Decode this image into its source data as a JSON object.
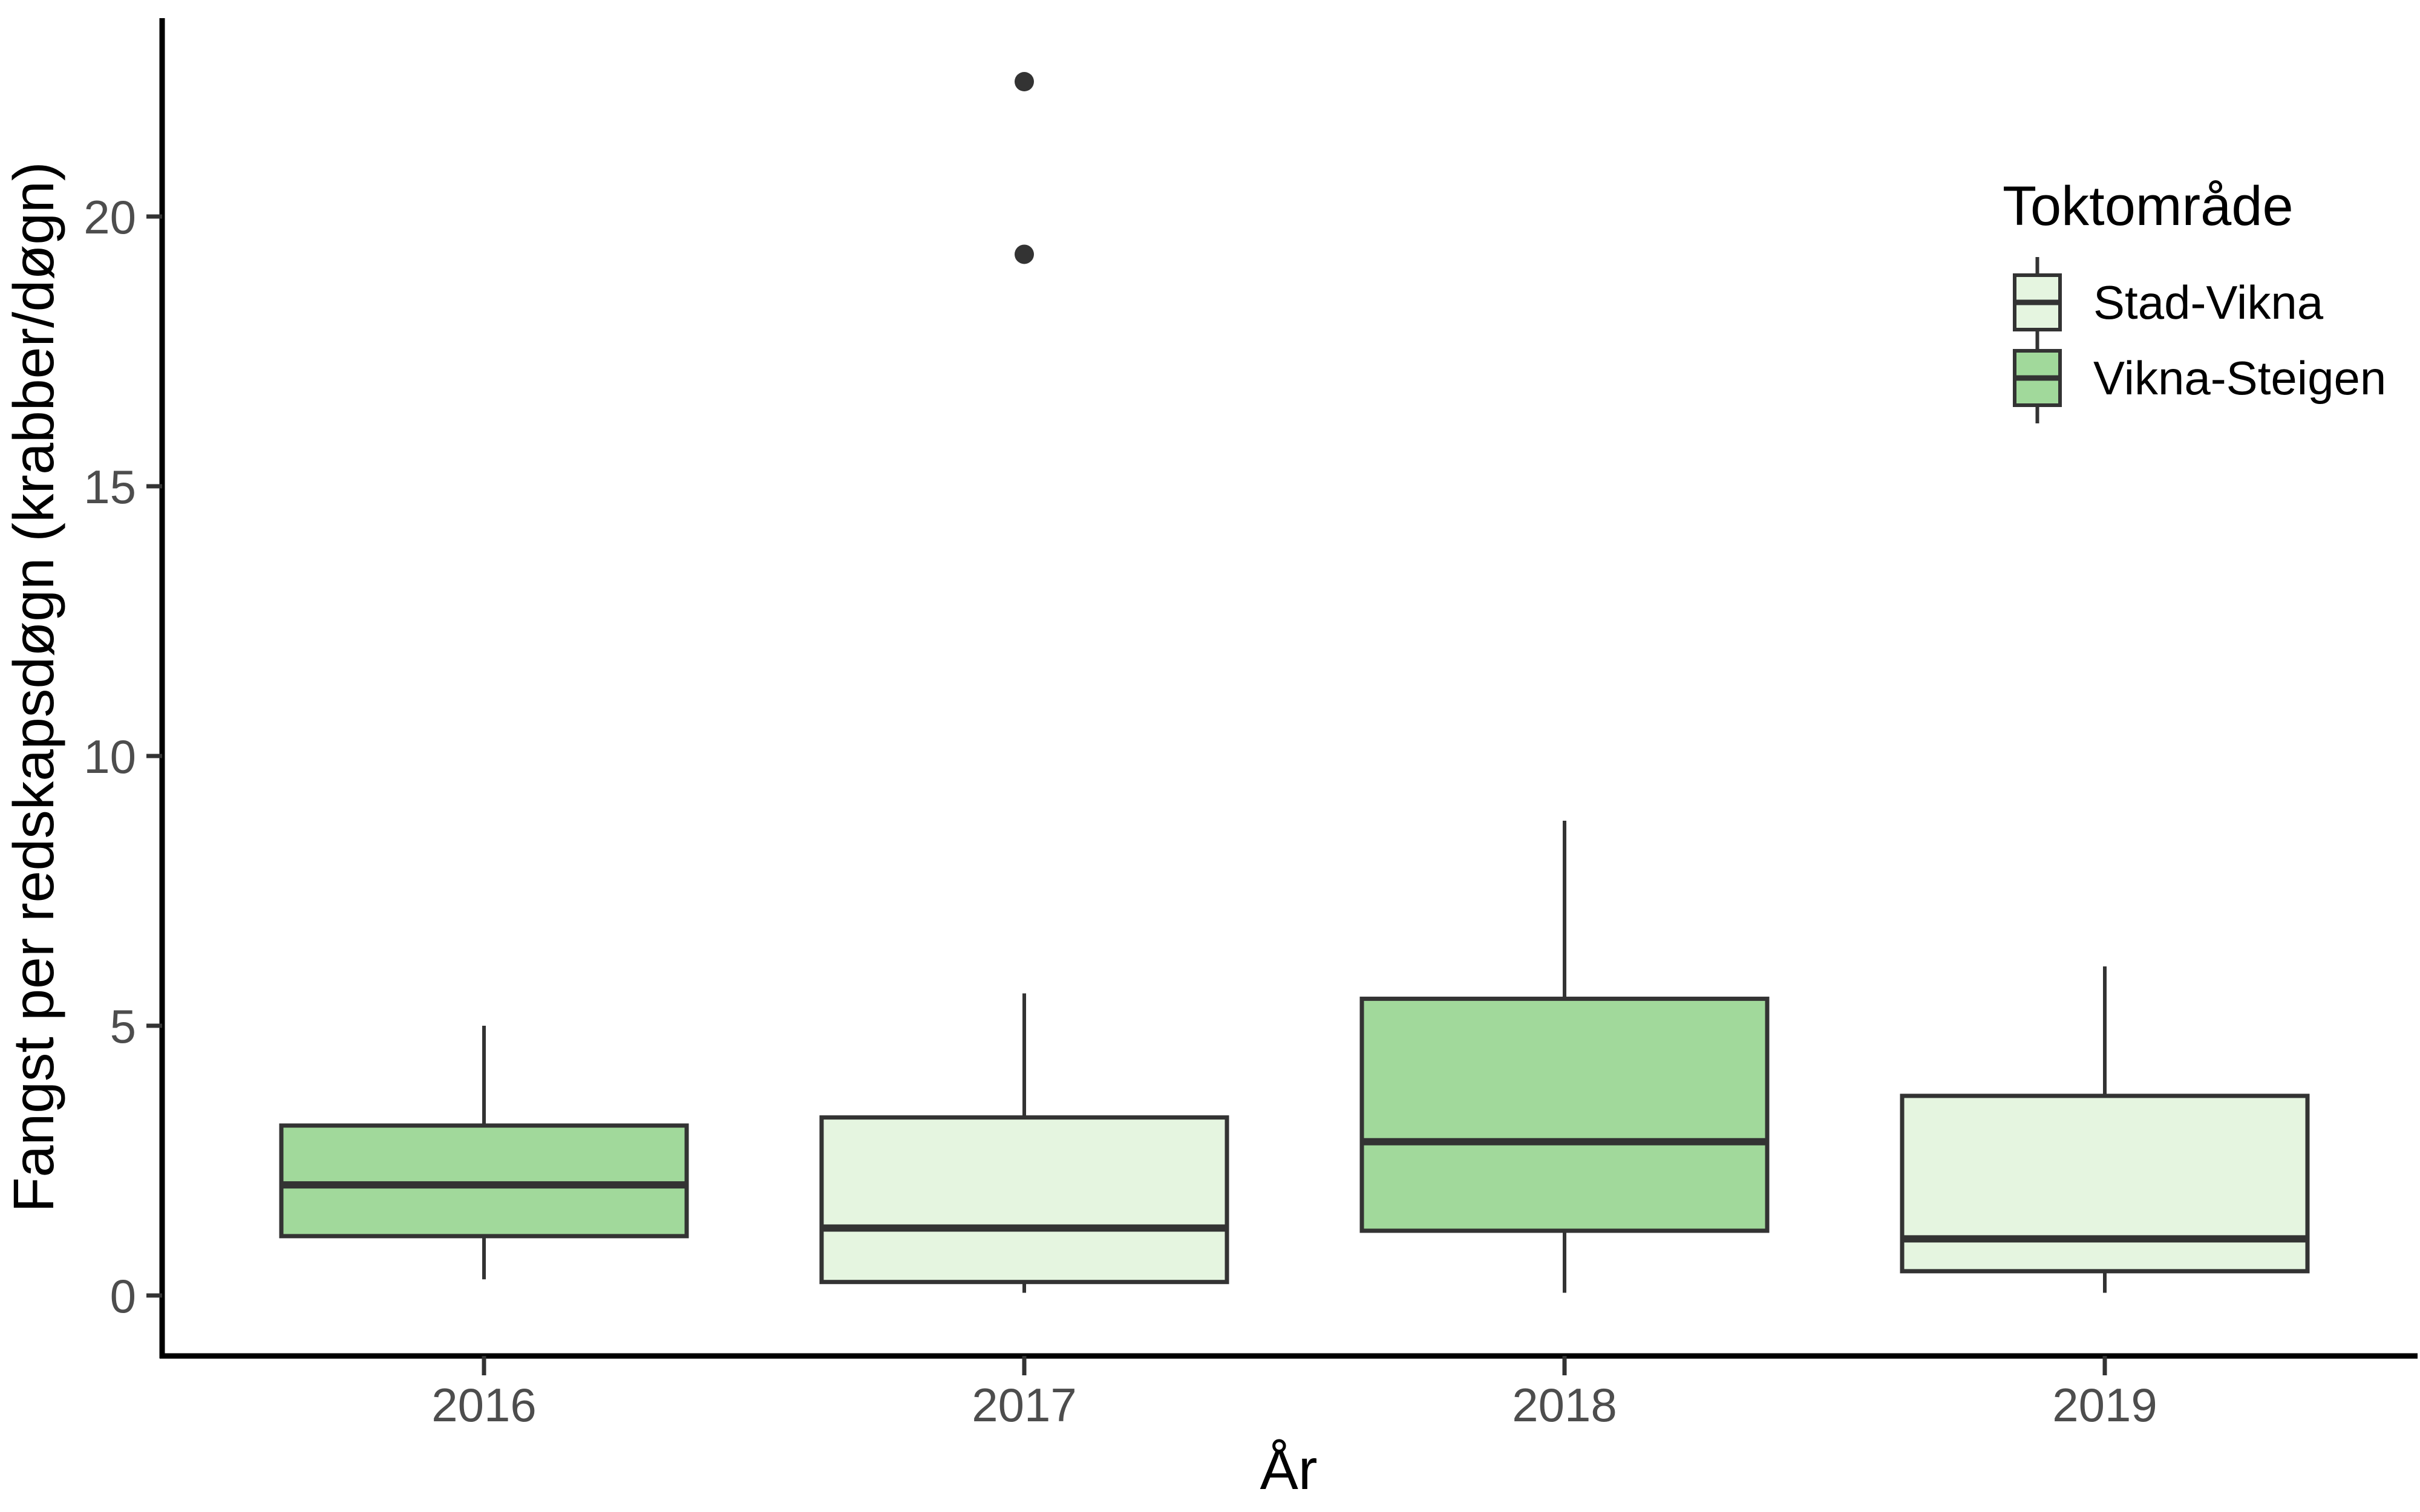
{
  "chart_data": {
    "type": "boxplot",
    "title": "",
    "xlabel": "År",
    "ylabel": "Fangst per redskapsdøgn (krabber/døgn)",
    "categories": [
      "2016",
      "2017",
      "2018",
      "2019"
    ],
    "y_ticks": [
      0,
      5,
      10,
      15,
      20
    ],
    "ylim": [
      0,
      23.5
    ],
    "grid": "off",
    "legend": {
      "title": "Toktområde",
      "position": "right-top",
      "entries": [
        {
          "label": "Stad-Vikna",
          "color": "#E5F5E0"
        },
        {
          "label": "Vikna-Steigen",
          "color": "#A1D99B"
        }
      ]
    },
    "boxes": [
      {
        "category": "2016",
        "group": "Vikna-Steigen",
        "color": "#A1D99B",
        "whisker_low": 0.3,
        "q1": 1.1,
        "median": 2.05,
        "q3": 3.15,
        "whisker_high": 5.0,
        "outliers": []
      },
      {
        "category": "2017",
        "group": "Stad-Vikna",
        "color": "#E5F5E0",
        "whisker_low": 0.05,
        "q1": 0.25,
        "median": 1.25,
        "q3": 3.3,
        "whisker_high": 5.6,
        "outliers": [
          19.3,
          22.5
        ]
      },
      {
        "category": "2018",
        "group": "Vikna-Steigen",
        "color": "#A1D99B",
        "whisker_low": 0.05,
        "q1": 1.2,
        "median": 2.85,
        "q3": 5.5,
        "whisker_high": 8.8,
        "outliers": []
      },
      {
        "category": "2019",
        "group": "Stad-Vikna",
        "color": "#E5F5E0",
        "whisker_low": 0.05,
        "q1": 0.45,
        "median": 1.05,
        "q3": 3.7,
        "whisker_high": 6.1,
        "outliers": []
      }
    ],
    "style_colors": {
      "box_border": "#333333",
      "median_line": "#333333",
      "whisker": "#333333",
      "outlier": "#333333",
      "axis_line": "#000000",
      "tick_mark": "#333333",
      "tick_text": "#4d4d4d",
      "background": "#ffffff"
    }
  }
}
